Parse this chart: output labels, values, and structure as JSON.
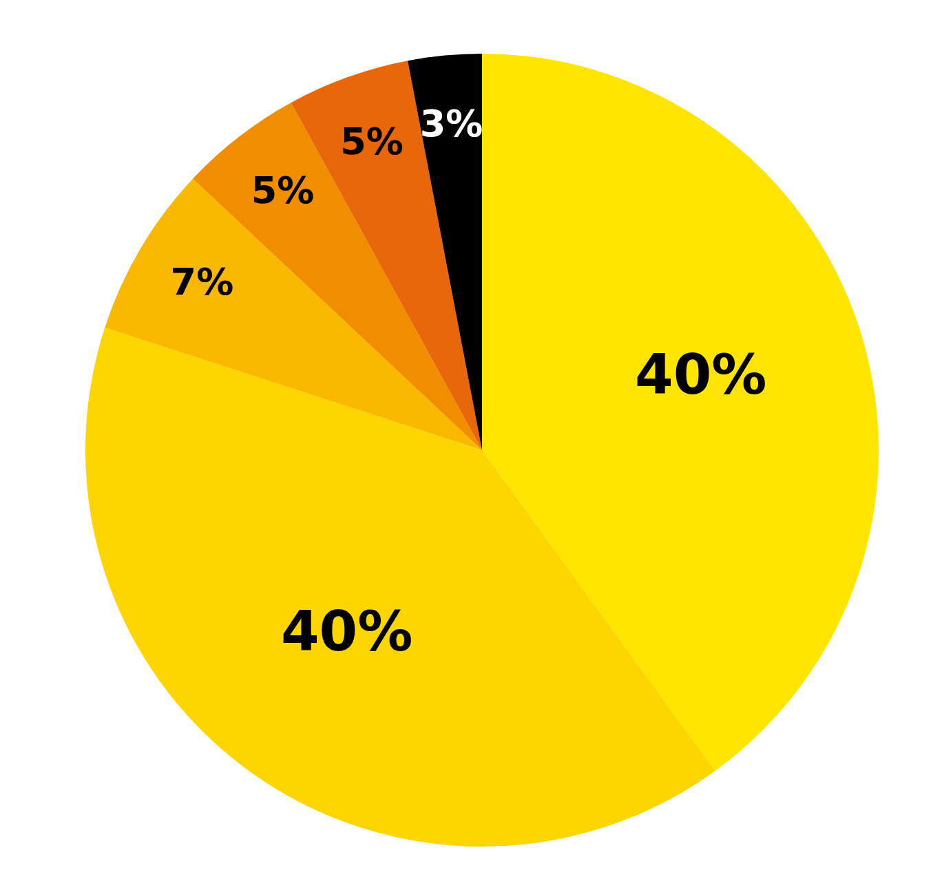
{
  "chart_data": {
    "type": "pie",
    "categories": [
      null,
      null,
      null,
      null,
      null,
      null
    ],
    "values": [
      40,
      40,
      7,
      5,
      5,
      3
    ],
    "value_labels": [
      "40%",
      "40%",
      "7%",
      "5%",
      "5%",
      "3%"
    ],
    "colors": [
      "#ffe500",
      "#fdd500",
      "#fab800",
      "#f18e00",
      "#e8670a",
      "#000000"
    ],
    "legend": false
  }
}
